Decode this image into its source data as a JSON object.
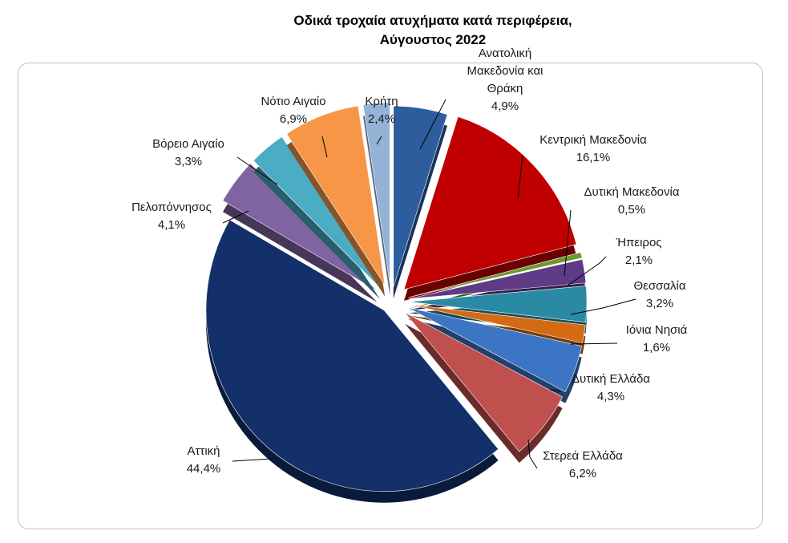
{
  "chart_data": {
    "type": "pie",
    "title_lines": [
      "Οδικά τροχαία ατυχήματα κατά περιφέρεια,",
      "Αύγουστος 2022"
    ],
    "slices": [
      {
        "name": "Ανατολική Μακεδονία και Θράκη",
        "label_lines": [
          "Ανατολική",
          "Μακεδονία και",
          "Θράκη"
        ],
        "value": 4.9,
        "value_label": "4,9%",
        "color": "#2e5d9e"
      },
      {
        "name": "Κεντρική Μακεδονία",
        "label_lines": [
          "Κεντρική Μακεδονία"
        ],
        "value": 16.1,
        "value_label": "16,1%",
        "color": "#c00000"
      },
      {
        "name": "Δυτική Μακεδονία",
        "label_lines": [
          "Δυτική Μακεδονία"
        ],
        "value": 0.5,
        "value_label": "0,5%",
        "color": "#6a9a2c"
      },
      {
        "name": "Ήπειρος",
        "label_lines": [
          "Ήπειρος"
        ],
        "value": 2.1,
        "value_label": "2,1%",
        "color": "#5e3a87"
      },
      {
        "name": "Θεσσαλία",
        "label_lines": [
          "Θεσσαλία"
        ],
        "value": 3.2,
        "value_label": "3,2%",
        "color": "#2a8aa3"
      },
      {
        "name": "Ιόνια Νησιά",
        "label_lines": [
          "Ιόνια Νησιά"
        ],
        "value": 1.6,
        "value_label": "1,6%",
        "color": "#d46b14"
      },
      {
        "name": "Δυτική Ελλάδα",
        "label_lines": [
          "Δυτική Ελλάδα"
        ],
        "value": 4.3,
        "value_label": "4,3%",
        "color": "#3c75c4"
      },
      {
        "name": "Στερεά Ελλάδα",
        "label_lines": [
          "Στερεά Ελλάδα"
        ],
        "value": 6.2,
        "value_label": "6,2%",
        "color": "#c0504d"
      },
      {
        "name": "Αττική",
        "label_lines": [
          "Αττική"
        ],
        "value": 44.4,
        "value_label": "44,4%",
        "color": "#13306b"
      },
      {
        "name": "Πελοπόννησος",
        "label_lines": [
          "Πελοπόννησος"
        ],
        "value": 4.1,
        "value_label": "4,1%",
        "color": "#8064a2"
      },
      {
        "name": "Βόρειο Αιγαίο",
        "label_lines": [
          "Βόρειο Αιγαίο"
        ],
        "value": 3.3,
        "value_label": "3,3%",
        "color": "#4bacc6"
      },
      {
        "name": "Νότιο Αιγαίο",
        "label_lines": [
          "Νότιο Αιγαίο"
        ],
        "value": 6.9,
        "value_label": "6,9%",
        "color": "#f79646"
      },
      {
        "name": "Κρήτη",
        "label_lines": [
          "Κρήτη"
        ],
        "value": 2.4,
        "value_label": "2,4%",
        "color": "#95b3d7"
      }
    ],
    "start_angle_deg": 0,
    "direction": "clockwise",
    "legend": "none",
    "labels": "outside-with-leader-lines"
  }
}
